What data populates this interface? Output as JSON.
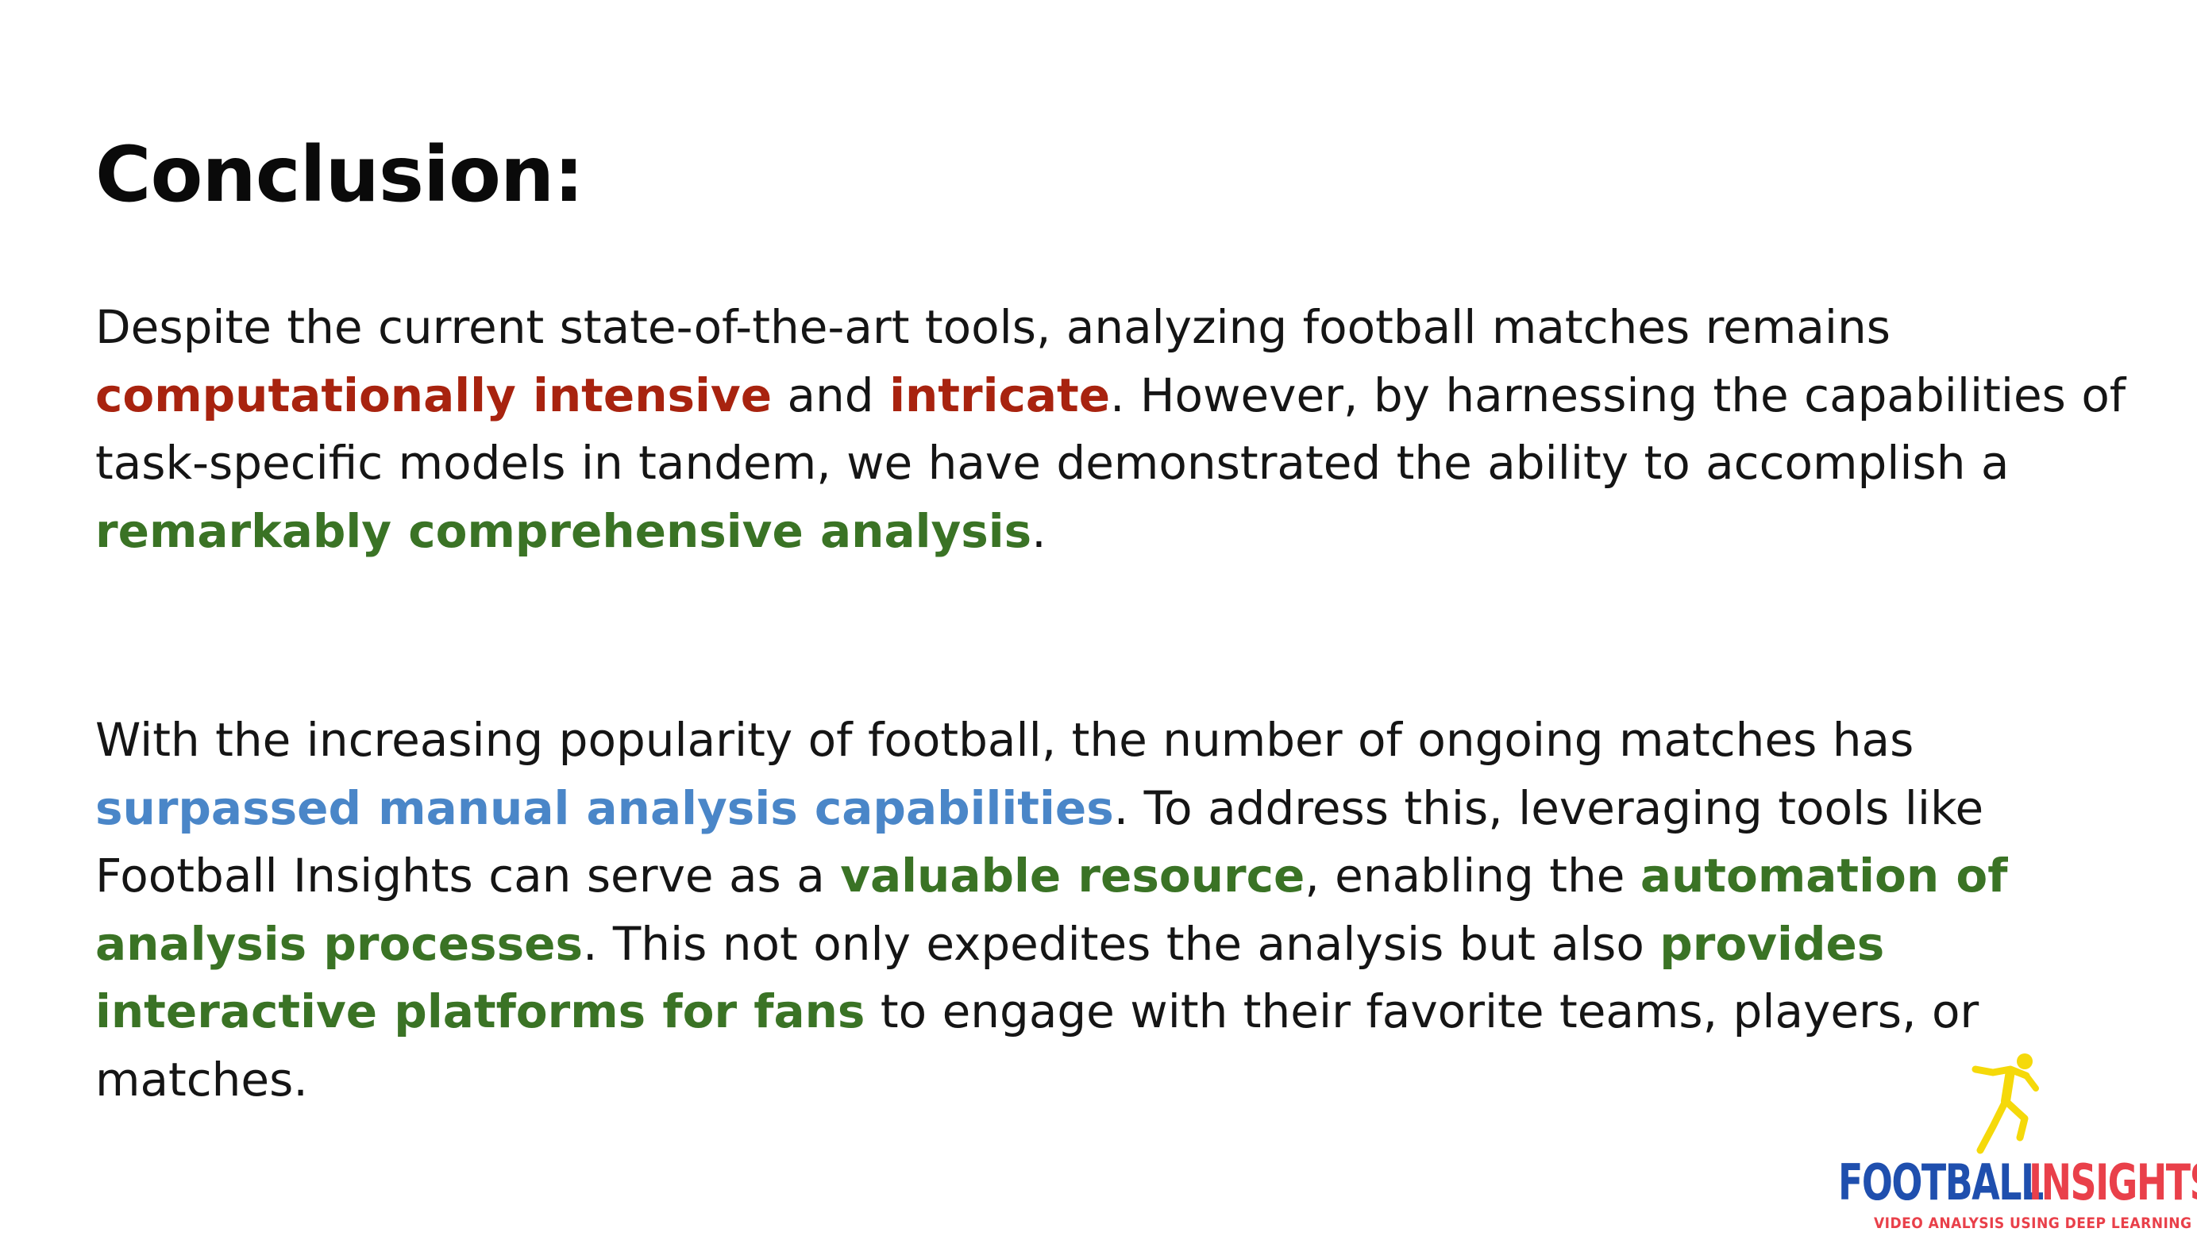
{
  "slide": {
    "title": "Conclusion:",
    "paragraph1": {
      "s1": "Despite the current state-of-the-art tools, analyzing football matches remains ",
      "h1": "computationally intensive",
      "s2": " and ",
      "h2": "intricate",
      "s3": ". However, by harnessing the capabilities of task-specific models in tandem, we have demonstrated the ability to accomplish a ",
      "h3": "remarkably comprehensive analysis",
      "s4": "."
    },
    "paragraph2": {
      "s1": "With the increasing popularity of football, the number of ongoing matches has ",
      "h1": "surpassed manual analysis capabilities",
      "s2": ". To address this, leveraging tools like Football Insights can serve as a ",
      "h2": "valuable resource",
      "s3": ", enabling the ",
      "h3": "automation of analysis processes",
      "s4": ". This not only expedites the analysis but also ",
      "h4": "provides interactive platforms for fans",
      "s5": " to engage with their favorite teams, players, or matches."
    }
  },
  "logo": {
    "icon": "football-player-icon",
    "word1": "FOOTBALL",
    "word2": "INSIGHTS",
    "tagline": "VIDEO ANALYSIS USING DEEP LEARNING",
    "colors": {
      "word1": "#1f4fae",
      "word2": "#e9404a",
      "figure": "#f5d90a"
    }
  },
  "colors": {
    "red_highlight": "#a8230f",
    "green_highlight": "#3a7325",
    "blue_highlight": "#4a86c8"
  }
}
